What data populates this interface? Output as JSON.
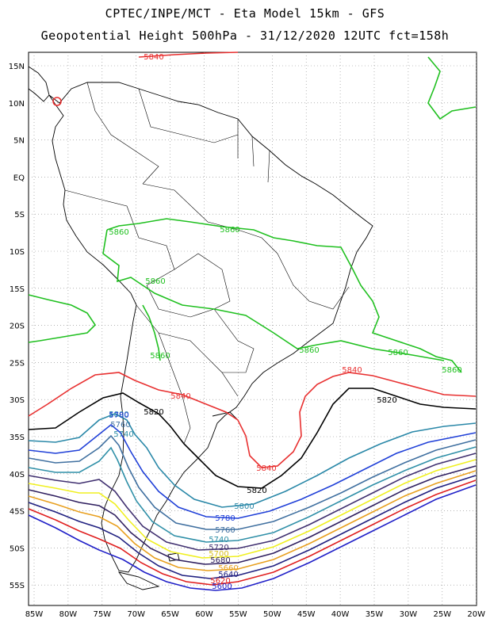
{
  "header": {
    "line1": "CPTEC/INPE/MCT - Eta Model 15km - GFS",
    "line2": "Geopotential Height 500hPa - 31/12/2020 12UTC fct=158h"
  },
  "lat_labels": [
    "15N",
    "10N",
    "5N",
    "EQ",
    "5S",
    "10S",
    "15S",
    "20S",
    "25S",
    "30S",
    "35S",
    "40S",
    "45S",
    "50S",
    "55S"
  ],
  "lon_labels": [
    "85W",
    "80W",
    "75W",
    "70W",
    "65W",
    "60W",
    "55W",
    "50W",
    "45W",
    "40W",
    "35W",
    "30W",
    "25W",
    "20W"
  ],
  "contour_colors": {
    "5600": "#2020c8",
    "5620": "#e02020",
    "5640": "#202080",
    "5660": "#e8a020",
    "5680": "#302060",
    "5700": "#f0f020",
    "5720": "#403070",
    "5740": "#3090a8",
    "5760": "#4070a0",
    "5780": "#2040d8",
    "5800": "#2a88a8",
    "5820": "#000000",
    "5840": "#e83030",
    "5860": "#20c020"
  },
  "contour_labels": [
    {
      "text": "5840",
      "color": "#e83030"
    },
    {
      "text": "5860",
      "color": "#20c020"
    },
    {
      "text": "5860",
      "color": "#20c020"
    },
    {
      "text": "5860",
      "color": "#20c020"
    },
    {
      "text": "5860",
      "color": "#20c020"
    },
    {
      "text": "5860",
      "color": "#20c020"
    },
    {
      "text": "5860",
      "color": "#20c020"
    },
    {
      "text": "5860",
      "color": "#20c020"
    },
    {
      "text": "5840",
      "color": "#e83030"
    },
    {
      "text": "5840",
      "color": "#e83030"
    },
    {
      "text": "5840",
      "color": "#e83030"
    },
    {
      "text": "5820",
      "color": "#000000"
    },
    {
      "text": "5820",
      "color": "#000000"
    },
    {
      "text": "5820",
      "color": "#000000"
    },
    {
      "text": "5800",
      "color": "#2a88a8"
    },
    {
      "text": "5800",
      "color": "#2a88a8"
    },
    {
      "text": "5780",
      "color": "#2040d8"
    },
    {
      "text": "5780",
      "color": "#2040d8"
    },
    {
      "text": "5760",
      "color": "#4070a0"
    },
    {
      "text": "5760",
      "color": "#4070a0"
    },
    {
      "text": "5740",
      "color": "#3090a8"
    },
    {
      "text": "5740",
      "color": "#3090a8"
    },
    {
      "text": "5720",
      "color": "#403070"
    },
    {
      "text": "5700",
      "color": "#d8c020"
    },
    {
      "text": "5680",
      "color": "#302060"
    },
    {
      "text": "5660",
      "color": "#e8a020"
    },
    {
      "text": "5640",
      "color": "#202080"
    },
    {
      "text": "5620",
      "color": "#e02020"
    },
    {
      "text": "5600",
      "color": "#2020c8"
    }
  ]
}
